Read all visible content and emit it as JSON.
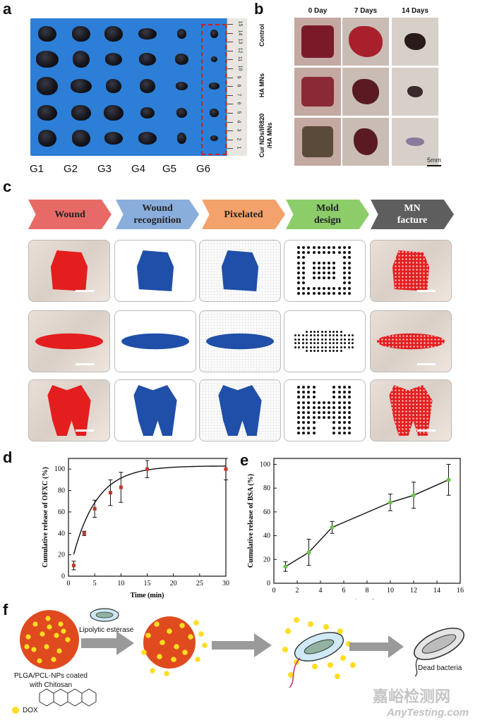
{
  "panel_a": {
    "letter": "a",
    "groups": [
      "G1",
      "G2",
      "G3",
      "G4",
      "G5",
      "G6"
    ],
    "ruler_numbers": [
      "15",
      "14",
      "13",
      "12",
      "11",
      "10",
      "9",
      "8",
      "7",
      "6",
      "5",
      "4",
      "3",
      "2",
      "1"
    ]
  },
  "panel_b": {
    "letter": "b",
    "columns": [
      "0 Day",
      "7 Days",
      "14 Days"
    ],
    "rows": [
      "Control",
      "HA MNs",
      "Cur NDs/IR820\n/HA MNs"
    ],
    "row_line1": [
      "Control",
      "HA MNs",
      "Cur NDs/IR820"
    ],
    "row_line2": [
      "",
      "",
      "/HA MNs"
    ],
    "scale": "5mm"
  },
  "panel_c": {
    "letter": "c",
    "steps": [
      "Wound",
      "Wound recognition",
      "Pixelated",
      "Mold design",
      "MN facture"
    ],
    "steps_line1": [
      "Wound",
      "Wound",
      "Pixelated",
      "Mold",
      "MN"
    ],
    "steps_line2": [
      "",
      "recognition",
      "",
      "design",
      "facture"
    ],
    "colors": {
      "wound": "#e86a66",
      "recognition": "#8aaedc",
      "pixelated": "#f2a26a",
      "mold": "#8ccd6a",
      "facture": "#5e5e5e",
      "mask_blue": "#1f4fa8",
      "wound_red": "#e41e1e"
    }
  },
  "panel_d": {
    "letter": "d",
    "chart_data": {
      "type": "line",
      "xlabel": "Time (min)",
      "ylabel": "Cumulative release of OFXC (%)",
      "xlim": [
        0,
        30
      ],
      "ylim": [
        0,
        110
      ],
      "xticks": [
        "0",
        "5",
        "10",
        "15",
        "20",
        "25",
        "30"
      ],
      "yticks": [
        "0",
        "20",
        "40",
        "60",
        "80",
        "100"
      ],
      "x": [
        1,
        3,
        5,
        8,
        10,
        15,
        30
      ],
      "y": [
        10,
        40,
        63,
        78,
        83,
        100,
        100
      ],
      "err": [
        4,
        2,
        8,
        12,
        14,
        8,
        10
      ],
      "fit_color": "#111111",
      "marker_color": "#c0392b"
    }
  },
  "panel_e": {
    "letter": "e",
    "chart_data": {
      "type": "line",
      "xlabel": "Time (day)",
      "ylabel": "Cumulative release of BSA (%)",
      "xlim": [
        0,
        16
      ],
      "ylim": [
        0,
        105
      ],
      "xticks": [
        "0",
        "2",
        "4",
        "6",
        "8",
        "10",
        "12",
        "14",
        "16"
      ],
      "yticks": [
        "0",
        "20",
        "40",
        "60",
        "80",
        "100"
      ],
      "x": [
        1,
        3,
        5,
        10,
        12,
        15
      ],
      "y": [
        14,
        26,
        47,
        68,
        74,
        87
      ],
      "err": [
        4,
        11,
        5,
        7,
        11,
        13
      ],
      "fit_color": "#111111",
      "marker_color": "#6cc24a"
    }
  },
  "panel_f": {
    "letter": "f",
    "enzyme": "Lipolytic esterase",
    "np_label_line1": "PLGA/PCL-NPs coated",
    "np_label_line2": "with Chitosan",
    "legend": "DOX",
    "dead": "Dead bacteria"
  },
  "watermark": {
    "line1": "嘉峪检测网",
    "line2": "AnyTesting.com"
  }
}
